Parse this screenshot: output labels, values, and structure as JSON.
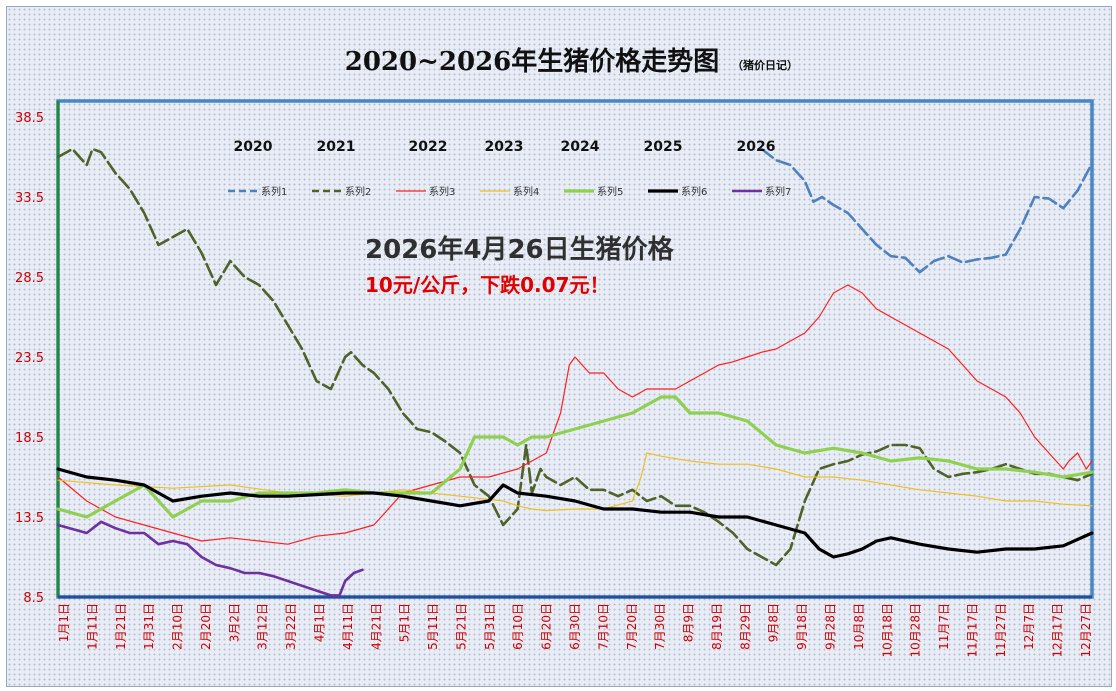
{
  "chart_data": {
    "type": "line",
    "title": "2020~2026年生猪价格走势图",
    "subtitle": "（猪价日记）",
    "yticks": [
      "8.5",
      "13.5",
      "18.5",
      "23.5",
      "28.5",
      "33.5",
      "38.5"
    ],
    "ylim": [
      8.5,
      39.5
    ],
    "x_tick_labels": [
      "1月1日",
      "1月11日",
      "1月21日",
      "1月31日",
      "2月10日",
      "2月20日",
      "3月2日",
      "3月12日",
      "3月22日",
      "4月1日",
      "4月11日",
      "4月21日",
      "5月1日",
      "5月11日",
      "5月21日",
      "5月31日",
      "6月10日",
      "6月20日",
      "6月30日",
      "7月10日",
      "7月20日",
      "7月30日",
      "8月9日",
      "8月19日",
      "8月29日",
      "9月8日",
      "9月18日",
      "9月28日",
      "10月8日",
      "10月18日",
      "10月28日",
      "11月7日",
      "11月17日",
      "11月27日",
      "12月7日",
      "12月17日",
      "12月27日"
    ],
    "year_labels": [
      "2020",
      "2021",
      "2022",
      "2023",
      "2024",
      "2025",
      "2026"
    ],
    "annotation": {
      "headline": "2026年4月26日生猪价格",
      "detail": "10元/公斤，下跌0.07元！"
    },
    "grid": false,
    "legend_position": "top",
    "series": [
      {
        "name": "系列1",
        "color": "#4f81bd",
        "style": "dashed",
        "x": [
          245,
          250,
          255,
          260,
          263,
          266,
          270,
          275,
          280,
          285,
          290,
          295,
          300,
          305,
          310,
          315,
          320,
          325,
          330,
          335,
          340,
          345,
          350,
          355,
          360
        ],
        "values": [
          36.5,
          35.8,
          35.5,
          34.5,
          33.2,
          33.5,
          33,
          32.5,
          31.5,
          30.5,
          29.8,
          29.7,
          28.8,
          29.5,
          29.8,
          29.4,
          29.6,
          29.7,
          29.9,
          31.5,
          33.5,
          33.4,
          32.8,
          33.9,
          35.6
        ]
      },
      {
        "name": "系列2",
        "color": "#4f6228",
        "style": "dashed",
        "x": [
          0,
          5,
          10,
          12,
          15,
          20,
          25,
          30,
          35,
          40,
          45,
          50,
          55,
          60,
          65,
          70,
          75,
          80,
          85,
          90,
          95,
          100,
          102,
          106,
          110,
          115,
          120,
          125,
          130,
          135,
          140,
          145,
          150,
          155,
          160,
          163,
          165,
          168,
          170,
          175,
          180,
          185,
          190,
          195,
          200,
          205,
          210,
          215,
          220,
          225,
          230,
          235,
          240,
          245,
          250,
          255,
          260,
          265,
          270,
          275,
          280,
          285,
          290,
          295,
          300,
          305,
          310,
          315,
          320,
          325,
          330,
          335,
          340,
          345,
          350,
          355,
          360
        ],
        "values": [
          36,
          36.5,
          35.5,
          36.5,
          36.3,
          35,
          34,
          32.5,
          30.5,
          31,
          31.5,
          30,
          28,
          29.5,
          28.5,
          28,
          27,
          25.5,
          24,
          22,
          21.5,
          23.5,
          23.8,
          23,
          22.5,
          21.5,
          20,
          19,
          18.8,
          18.2,
          17.5,
          15.5,
          14.8,
          13,
          14,
          18,
          15,
          16.5,
          16,
          15.5,
          16,
          15.2,
          15.2,
          14.8,
          15.2,
          14.5,
          14.8,
          14.2,
          14.2,
          13.8,
          13.2,
          12.5,
          11.5,
          11,
          10.5,
          11.5,
          14.5,
          16.5,
          16.8,
          17,
          17.4,
          17.6,
          18,
          18,
          17.8,
          16.5,
          16,
          16.2,
          16.3,
          16.5,
          16.8,
          16.5,
          16.2,
          16.2,
          16,
          15.8,
          16.2
        ]
      },
      {
        "name": "系列3",
        "color": "#ff2020",
        "style": "solid",
        "x": [
          0,
          10,
          20,
          30,
          40,
          50,
          60,
          70,
          80,
          90,
          100,
          110,
          120,
          130,
          140,
          150,
          160,
          170,
          175,
          178,
          180,
          185,
          190,
          195,
          200,
          205,
          210,
          215,
          220,
          225,
          230,
          235,
          240,
          245,
          250,
          255,
          260,
          265,
          270,
          275,
          280,
          285,
          290,
          295,
          300,
          305,
          310,
          315,
          320,
          325,
          330,
          335,
          340,
          345,
          350,
          352,
          355,
          358,
          360
        ],
        "values": [
          16,
          14.5,
          13.5,
          13,
          12.5,
          12,
          12.2,
          12,
          11.8,
          12.3,
          12.5,
          13,
          15,
          15.5,
          16,
          16,
          16.5,
          17.5,
          20,
          23,
          23.5,
          22.5,
          22.5,
          21.5,
          21,
          21.5,
          21.5,
          21.5,
          22,
          22.5,
          23,
          23.2,
          23.5,
          23.8,
          24,
          24.5,
          25,
          26,
          27.5,
          28,
          27.5,
          26.5,
          26,
          25.5,
          25,
          24.5,
          24,
          23,
          22,
          21.5,
          21,
          20,
          18.5,
          17.5,
          16.5,
          17,
          17.5,
          16.5,
          17
        ]
      },
      {
        "name": "系列4",
        "color": "#f0c020",
        "style": "solid",
        "x": [
          0,
          20,
          40,
          60,
          80,
          100,
          120,
          140,
          155,
          160,
          165,
          170,
          180,
          190,
          200,
          203,
          205,
          210,
          220,
          230,
          240,
          250,
          260,
          270,
          280,
          290,
          300,
          310,
          320,
          330,
          340,
          350,
          360
        ],
        "values": [
          15.8,
          15.5,
          15.3,
          15.5,
          15,
          14.8,
          15.2,
          14.8,
          14.5,
          14.2,
          14,
          13.9,
          14,
          14,
          14.5,
          16,
          17.5,
          17.3,
          17,
          16.8,
          16.8,
          16.5,
          16,
          16,
          15.8,
          15.5,
          15.2,
          15,
          14.8,
          14.5,
          14.5,
          14.3,
          14.2
        ]
      },
      {
        "name": "系列5",
        "color": "#8fd14f",
        "style": "solid",
        "x": [
          0,
          10,
          20,
          30,
          40,
          50,
          60,
          70,
          80,
          90,
          100,
          110,
          120,
          130,
          140,
          145,
          150,
          155,
          160,
          165,
          170,
          180,
          190,
          200,
          210,
          215,
          220,
          230,
          240,
          250,
          260,
          270,
          280,
          290,
          300,
          310,
          320,
          330,
          340,
          350,
          360
        ],
        "values": [
          14,
          13.5,
          14.5,
          15.5,
          13.5,
          14.5,
          14.5,
          15,
          15,
          15,
          15.2,
          15,
          15,
          15,
          16.5,
          18.5,
          18.5,
          18.5,
          18,
          18.5,
          18.5,
          19,
          19.5,
          20,
          21,
          21,
          20,
          20,
          19.5,
          18,
          17.5,
          17.8,
          17.5,
          17,
          17.2,
          17,
          16.5,
          16.5,
          16.3,
          16,
          16.3
        ]
      },
      {
        "name": "系列6",
        "color": "#000000",
        "style": "solid",
        "x": [
          0,
          10,
          20,
          30,
          40,
          50,
          60,
          70,
          80,
          90,
          100,
          110,
          120,
          130,
          140,
          150,
          155,
          160,
          170,
          180,
          190,
          200,
          210,
          220,
          230,
          240,
          250,
          260,
          265,
          270,
          275,
          280,
          285,
          290,
          300,
          310,
          320,
          330,
          340,
          350,
          360
        ],
        "values": [
          16.5,
          16,
          15.8,
          15.5,
          14.5,
          14.8,
          15,
          14.8,
          14.8,
          14.9,
          15,
          15,
          14.8,
          14.5,
          14.2,
          14.5,
          15.5,
          15,
          14.8,
          14.5,
          14,
          14,
          13.8,
          13.8,
          13.5,
          13.5,
          13,
          12.5,
          11.5,
          11,
          11.2,
          11.5,
          12,
          12.2,
          11.8,
          11.5,
          11.3,
          11.5,
          11.5,
          11.7,
          12.5
        ]
      },
      {
        "name": "系列7",
        "color": "#7030a0",
        "style": "solid",
        "x": [
          0,
          10,
          15,
          20,
          25,
          30,
          35,
          40,
          45,
          50,
          55,
          60,
          65,
          70,
          75,
          80,
          85,
          90,
          95,
          98,
          100,
          103,
          106
        ],
        "values": [
          13,
          12.5,
          13.2,
          12.8,
          12.5,
          12.5,
          11.8,
          12,
          11.8,
          11,
          10.5,
          10.3,
          10,
          10,
          9.8,
          9.5,
          9.2,
          8.9,
          8.6,
          8.6,
          9.5,
          10,
          10.2
        ]
      }
    ]
  }
}
